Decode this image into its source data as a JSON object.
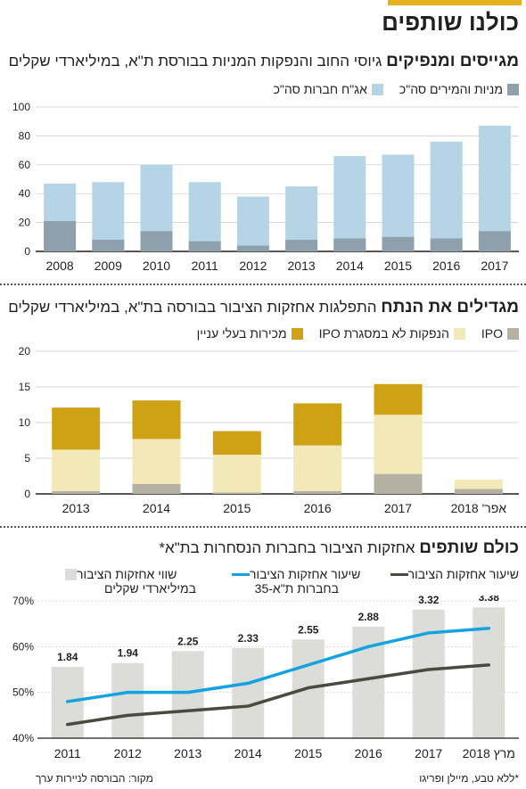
{
  "page": {
    "title": "כולנו שותפים",
    "footer_source": "מקור: הבורסה לניירות ערך",
    "footer_note": "*ללא טבע, מיילן ופריגו"
  },
  "colors": {
    "gold": "#e3b21c",
    "light_blue": "#b5d5e7",
    "blue_gray": "#8fa0ad",
    "dark_gold": "#cfa215",
    "cream": "#f2e8b8",
    "warm_gray": "#b4b0a2",
    "light_gray": "#dcdcd8",
    "cyan_line": "#12a3e0",
    "dark_line": "#4a4a40"
  },
  "chart_data": [
    {
      "type": "bar",
      "stacked": false,
      "overlay": true,
      "title_bold": "מגייסים ומנפיקים",
      "title_rest": "גיוסי החוב והנפקות המניות בבורסת ת\"א, במיליארדי שקלים",
      "categories": [
        "2008",
        "2009",
        "2010",
        "2011",
        "2012",
        "2013",
        "2014",
        "2015",
        "2016",
        "2017"
      ],
      "series": [
        {
          "name": "אג\"ח חברות סה\"כ",
          "values": [
            47,
            48,
            60,
            48,
            38,
            45,
            66,
            67,
            76,
            87
          ]
        },
        {
          "name": "מניות והמירים סה\"כ",
          "values": [
            21,
            8,
            14,
            7,
            4,
            8,
            9,
            10,
            9,
            14
          ]
        }
      ],
      "ylim": [
        0,
        100
      ],
      "yticks": [
        0,
        20,
        40,
        60,
        80,
        100
      ],
      "grid": true,
      "legend": "top-right"
    },
    {
      "type": "bar",
      "stacked": true,
      "title_bold": "מגדילים את הנתח",
      "title_rest": "התפלגות אחזקות הציבור בבורסה בת\"א, במיליארדי שקלים",
      "categories": [
        "2013",
        "2014",
        "2015",
        "2016",
        "2017",
        "אפר' 2018"
      ],
      "series": [
        {
          "name": "IPO",
          "values": [
            0.4,
            1.4,
            0.2,
            0.4,
            2.8,
            0.7
          ]
        },
        {
          "name": "הנפקות לא במסגרת IPO",
          "values": [
            5.8,
            6.3,
            5.3,
            6.4,
            8.3,
            1.3
          ]
        },
        {
          "name": "מכירות בעלי עניין",
          "values": [
            5.9,
            5.4,
            3.3,
            5.9,
            4.3,
            0
          ]
        }
      ],
      "ylim": [
        0,
        20
      ],
      "yticks": [
        0,
        5,
        10,
        15,
        20
      ],
      "grid": true,
      "legend": "top-right"
    },
    {
      "type": "bar",
      "combo": "bar+line",
      "title_bold": "כולם שותפים",
      "title_rest": "אחזקות הציבור בחברות הנסחרות בת\"א*",
      "categories": [
        "2011",
        "2012",
        "2013",
        "2014",
        "2015",
        "2016",
        "2017",
        "מרץ 2018"
      ],
      "bars": {
        "name_line1": "שווי אחזקות הציבור",
        "name_line2": "במיליארדי שקלים",
        "values": [
          1.84,
          1.94,
          2.25,
          2.33,
          2.55,
          2.88,
          3.32,
          3.38
        ],
        "labels": [
          "1.84",
          "1.94",
          "2.25",
          "2.33",
          "2.55",
          "2.88",
          "3.32",
          "3.38"
        ]
      },
      "lines": [
        {
          "name_line1": "שיעור אחזקות הציבור",
          "name_line2": "בחברות ת\"א-35",
          "values": [
            48,
            50,
            50,
            52,
            56,
            60,
            63,
            64
          ]
        },
        {
          "name_line1": "שיעור אחזקות הציבור",
          "name_line2": "",
          "values": [
            43,
            45,
            46,
            47,
            51,
            53,
            55,
            56
          ]
        }
      ],
      "ylim": [
        40,
        70
      ],
      "yticks": [
        "40%",
        "50%",
        "60%",
        "70%"
      ],
      "grid": true,
      "legend": "top"
    }
  ]
}
